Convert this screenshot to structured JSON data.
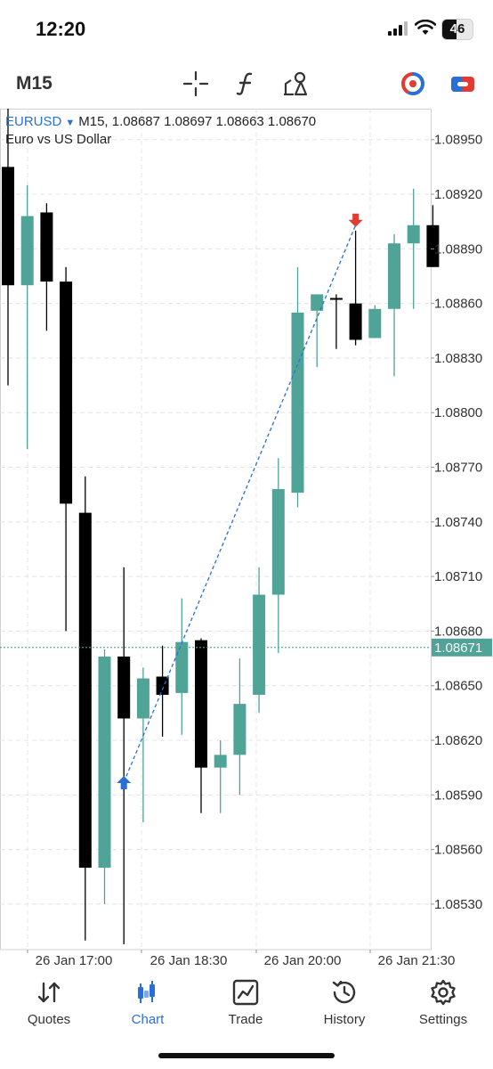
{
  "status": {
    "time": "12:20",
    "battery": "46"
  },
  "toolbar": {
    "timeframe": "M15"
  },
  "symbol": {
    "name": "EURUSD",
    "timeframe": "M15",
    "ohlc": "1.08687 1.08697 1.08663 1.08670",
    "description": "Euro vs US Dollar"
  },
  "chart_data": {
    "type": "candlestick",
    "price_axis": [
      "1.08950",
      "1.08920",
      "1.08890",
      "1.08860",
      "1.08830",
      "1.08800",
      "1.08770",
      "1.08740",
      "1.08710",
      "1.08680",
      "1.08650",
      "1.08620",
      "1.08590",
      "1.08560",
      "1.08530"
    ],
    "current_price": "1.08671",
    "ylim": [
      1.08505,
      1.08967
    ],
    "time_labels": [
      "26 Jan 17:00",
      "26 Jan 18:30",
      "26 Jan 20:00",
      "26 Jan 21:30"
    ],
    "candles": [
      {
        "o": 1.08935,
        "h": 1.0897,
        "l": 1.08815,
        "c": 1.0887
      },
      {
        "o": 1.0887,
        "h": 1.08925,
        "l": 1.0878,
        "c": 1.08908
      },
      {
        "o": 1.0891,
        "h": 1.08915,
        "l": 1.08845,
        "c": 1.08872
      },
      {
        "o": 1.08872,
        "h": 1.0888,
        "l": 1.0868,
        "c": 1.0875
      },
      {
        "o": 1.08745,
        "h": 1.08765,
        "l": 1.0851,
        "c": 1.0855
      },
      {
        "o": 1.0855,
        "h": 1.0867,
        "l": 1.0853,
        "c": 1.08666
      },
      {
        "o": 1.08666,
        "h": 1.08715,
        "l": 1.08508,
        "c": 1.08632
      },
      {
        "o": 1.08632,
        "h": 1.0866,
        "l": 1.08575,
        "c": 1.08654
      },
      {
        "o": 1.08655,
        "h": 1.08672,
        "l": 1.08622,
        "c": 1.08645
      },
      {
        "o": 1.08646,
        "h": 1.08698,
        "l": 1.08623,
        "c": 1.08674
      },
      {
        "o": 1.08675,
        "h": 1.08676,
        "l": 1.0858,
        "c": 1.08605
      },
      {
        "o": 1.08605,
        "h": 1.0862,
        "l": 1.0858,
        "c": 1.08612
      },
      {
        "o": 1.08612,
        "h": 1.08665,
        "l": 1.0859,
        "c": 1.0864
      },
      {
        "o": 1.08645,
        "h": 1.08715,
        "l": 1.08635,
        "c": 1.087
      },
      {
        "o": 1.087,
        "h": 1.08775,
        "l": 1.08668,
        "c": 1.08758
      },
      {
        "o": 1.08756,
        "h": 1.0888,
        "l": 1.08748,
        "c": 1.08855
      },
      {
        "o": 1.08856,
        "h": 1.08865,
        "l": 1.08825,
        "c": 1.08865
      },
      {
        "o": 1.08863,
        "h": 1.08865,
        "l": 1.08835,
        "c": 1.08862
      },
      {
        "o": 1.0886,
        "h": 1.089,
        "l": 1.08837,
        "c": 1.0884
      },
      {
        "o": 1.08841,
        "h": 1.08859,
        "l": 1.08841,
        "c": 1.08857
      },
      {
        "o": 1.08857,
        "h": 1.08898,
        "l": 1.0882,
        "c": 1.08893
      },
      {
        "o": 1.08893,
        "h": 1.08923,
        "l": 1.08857,
        "c": 1.08903
      },
      {
        "o": 1.08903,
        "h": 1.08914,
        "l": 1.0888,
        "c": 1.0888
      }
    ],
    "trade": {
      "buy": {
        "candle": 6,
        "price": 1.08597
      },
      "sell": {
        "candle": 18,
        "price": 1.08903
      }
    }
  },
  "tabs": [
    {
      "label": "Quotes",
      "icon": "quotes-icon"
    },
    {
      "label": "Chart",
      "icon": "chart-icon",
      "active": true
    },
    {
      "label": "Trade",
      "icon": "trade-icon"
    },
    {
      "label": "History",
      "icon": "history-icon"
    },
    {
      "label": "Settings",
      "icon": "settings-icon"
    }
  ],
  "colors": {
    "bull": "#4fa497",
    "bear": "#000000",
    "accent": "#2a6fd6",
    "sell": "#e03c31"
  }
}
